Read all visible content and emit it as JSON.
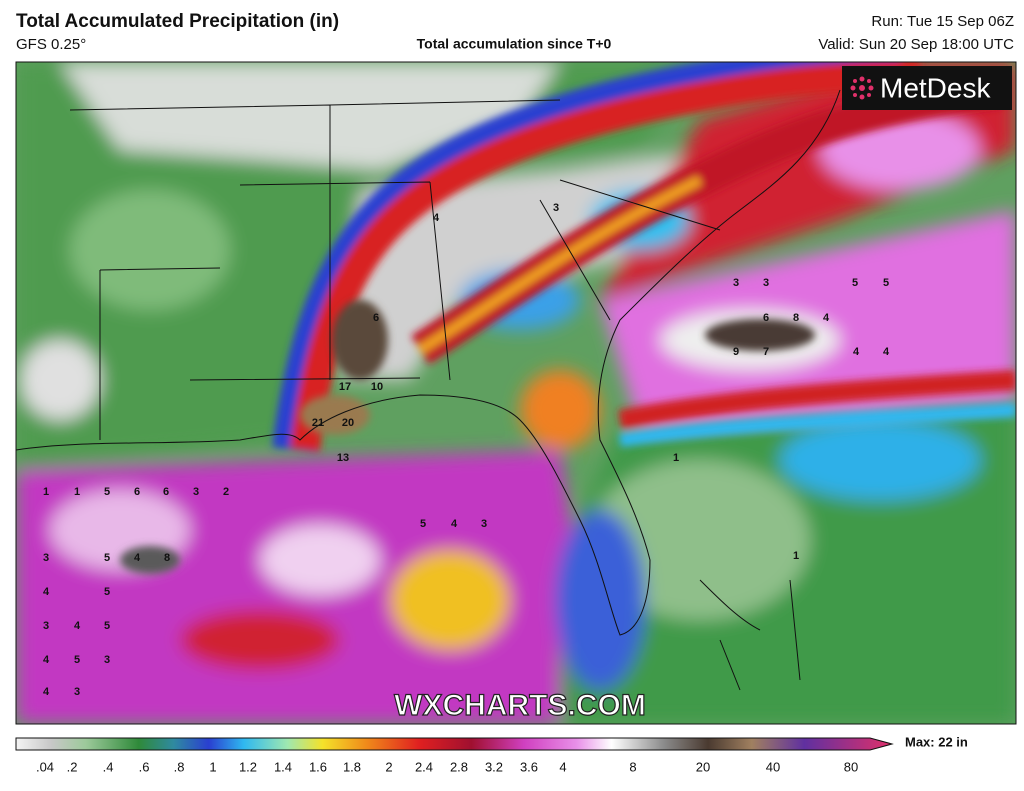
{
  "header": {
    "title": "Total Accumulated Precipitation (in)",
    "model": "GFS 0.25°",
    "subtitle": "Total accumulation since T+0",
    "run": "Run: Tue 15 Sep 06Z",
    "valid": "Valid: Sun 20 Sep 18:00 UTC"
  },
  "logo": "MetDesk",
  "watermark": "WXCHARTS.COM",
  "colorbar": {
    "labels": [
      ".04",
      ".2",
      ".4",
      ".6",
      ".8",
      "1",
      "1.2",
      "1.4",
      "1.6",
      "1.8",
      "2",
      "2.4",
      "2.8",
      "3.2",
      "3.6",
      "4",
      "8",
      "20",
      "40",
      "80"
    ],
    "max": "Max: 22 in"
  },
  "map": {
    "labels": [
      21,
      20,
      17,
      10,
      13,
      9,
      8,
      7,
      6,
      6,
      6,
      5,
      8,
      5,
      4,
      3,
      4,
      5,
      3,
      4,
      5,
      4,
      5,
      3,
      4,
      3,
      1,
      1,
      3,
      2,
      5,
      4,
      3,
      5,
      5,
      4,
      4,
      4,
      3,
      3,
      6,
      4,
      3,
      1,
      1
    ]
  }
}
